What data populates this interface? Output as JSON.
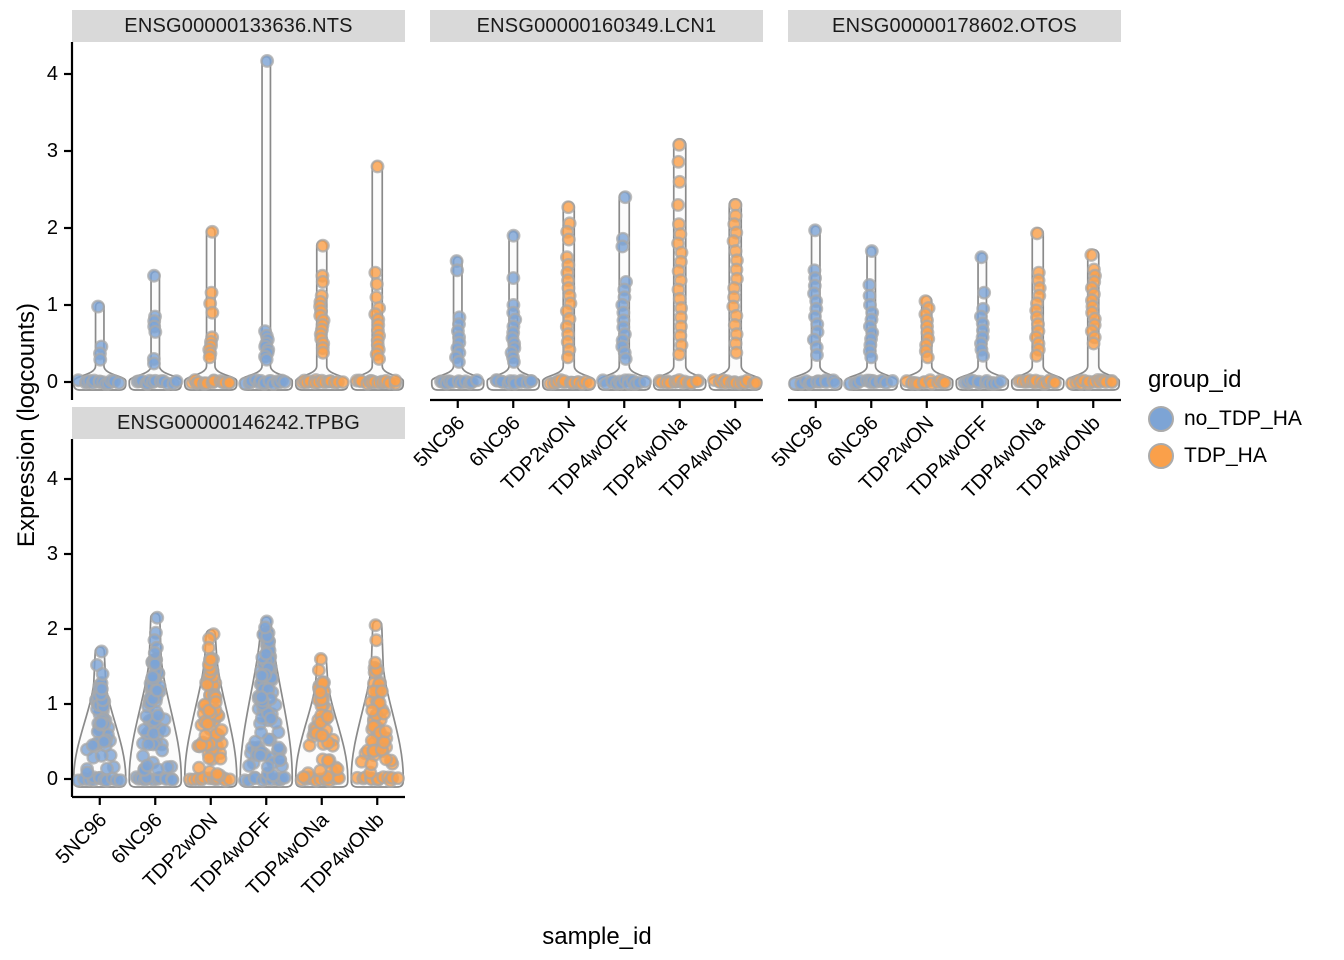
{
  "chart_data": {
    "type": "violin",
    "title": "",
    "xlabel": "sample_id",
    "ylabel": "Expression (logcounts)",
    "y_ticks": [
      0,
      1,
      2,
      3,
      4
    ],
    "ylim": [
      0,
      4.4
    ],
    "grid": "off",
    "background": "#ffffff",
    "strip_background": "#D9D9D9",
    "violin_outline_color": "#8A8A8A",
    "violin_fill_color": "#FAFAFA",
    "point_stroke_color": "#A8A8A8",
    "legend": {
      "title": "group_id",
      "position": "right",
      "entries": [
        {
          "label": "no_TDP_HA",
          "color": "#7DA4D5"
        },
        {
          "label": "TDP_HA",
          "color": "#FAA04A"
        }
      ]
    },
    "categories": [
      {
        "label": "5NC96",
        "group": "no_TDP_HA"
      },
      {
        "label": "6NC96",
        "group": "no_TDP_HA"
      },
      {
        "label": "TDP2wON",
        "group": "TDP_HA"
      },
      {
        "label": "TDP4wOFF",
        "group": "no_TDP_HA"
      },
      {
        "label": "TDP4wONa",
        "group": "TDP_HA"
      },
      {
        "label": "TDP4wONb",
        "group": "TDP_HA"
      }
    ],
    "facets": [
      {
        "label": "ENSG00000133636.NTS",
        "axes": [
          "left"
        ],
        "violins": [
          {
            "shape": "spike",
            "max": 0.98,
            "points": [
              0.98,
              0.46,
              0.37,
              0.29
            ],
            "zeros": 14
          },
          {
            "shape": "spike",
            "max": 1.38,
            "points": [
              1.38,
              0.85,
              0.79,
              0.72,
              0.65,
              0.3,
              0.24
            ],
            "zeros": 14
          },
          {
            "shape": "spike",
            "max": 1.95,
            "points": [
              1.95,
              1.16,
              1.02,
              0.9,
              0.58,
              0.52,
              0.47,
              0.42,
              0.37,
              0.32
            ],
            "zeros": 15
          },
          {
            "shape": "spike",
            "max": 4.17,
            "points": [
              4.17,
              0.66,
              0.6,
              0.55,
              0.5,
              0.46,
              0.42,
              0.38,
              0.33,
              0.29
            ],
            "zeros": 15
          },
          {
            "shape": "spike",
            "max": 1.77,
            "points": [
              1.77,
              1.38,
              1.3,
              1.12,
              1.04,
              0.98,
              0.92,
              0.86,
              0.8,
              0.74,
              0.68,
              0.62,
              0.56,
              0.5,
              0.44,
              0.38
            ],
            "zeros": 15,
            "w": 5
          },
          {
            "shape": "spike",
            "max": 2.8,
            "points": [
              2.8,
              1.42,
              1.27,
              1.1,
              0.96,
              0.88,
              0.81,
              0.74,
              0.67,
              0.6,
              0.54,
              0.48,
              0.42,
              0.36,
              0.3
            ],
            "zeros": 16,
            "w": 5
          }
        ]
      },
      {
        "label": "ENSG00000160349.LCN1",
        "axes": [
          "bottom"
        ],
        "violins": [
          {
            "shape": "spike",
            "max": 1.57,
            "points": [
              1.57,
              1.45,
              0.84,
              0.75,
              0.66,
              0.58,
              0.51,
              0.44,
              0.38,
              0.32,
              0.26
            ],
            "zeros": 13
          },
          {
            "shape": "spike",
            "max": 1.9,
            "points": [
              1.9,
              1.35,
              1.0,
              0.9,
              0.81,
              0.72,
              0.64,
              0.57,
              0.5,
              0.44,
              0.38,
              0.32,
              0.26
            ],
            "zeros": 13
          },
          {
            "shape": "spike",
            "max": 2.27,
            "points": [
              2.27,
              2.06,
              1.95,
              1.85,
              1.62,
              1.52,
              1.42,
              1.32,
              1.22,
              1.12,
              1.02,
              0.92,
              0.82,
              0.72,
              0.62,
              0.52,
              0.42,
              0.32
            ],
            "zeros": 15,
            "w": 5.5
          },
          {
            "shape": "spike",
            "max": 2.4,
            "points": [
              2.4,
              1.86,
              1.76,
              1.3,
              1.2,
              1.1,
              1.0,
              0.9,
              0.8,
              0.71,
              0.62,
              0.54,
              0.46,
              0.38,
              0.3
            ],
            "zeros": 15,
            "w": 5
          },
          {
            "shape": "spike",
            "max": 3.08,
            "points": [
              3.08,
              2.86,
              2.6,
              2.3,
              2.05,
              1.92,
              1.8,
              1.68,
              1.56,
              1.44,
              1.32,
              1.2,
              1.08,
              0.96,
              0.84,
              0.72,
              0.6,
              0.48,
              0.36
            ],
            "zeros": 16,
            "w": 6
          },
          {
            "shape": "spike",
            "max": 2.3,
            "points": [
              2.3,
              2.16,
              2.05,
              1.94,
              1.83,
              1.7,
              1.58,
              1.46,
              1.34,
              1.22,
              1.1,
              0.98,
              0.86,
              0.74,
              0.62,
              0.5,
              0.38
            ],
            "zeros": 16,
            "w": 6
          }
        ]
      },
      {
        "label": "ENSG00000178602.OTOS",
        "axes": [
          "bottom"
        ],
        "violins": [
          {
            "shape": "spike",
            "max": 1.97,
            "points": [
              1.97,
              1.45,
              1.35,
              1.25,
              1.15,
              1.05,
              0.95,
              0.85,
              0.75,
              0.65,
              0.55,
              0.45,
              0.35
            ],
            "zeros": 13
          },
          {
            "shape": "spike",
            "max": 1.7,
            "points": [
              1.7,
              1.26,
              1.12,
              1.0,
              0.9,
              0.81,
              0.72,
              0.64,
              0.56,
              0.48,
              0.4,
              0.32
            ],
            "zeros": 13
          },
          {
            "shape": "spike",
            "max": 1.05,
            "points": [
              1.05,
              0.96,
              0.88,
              0.8,
              0.72,
              0.64,
              0.56,
              0.48,
              0.4,
              0.32
            ],
            "zeros": 13,
            "w": 5
          },
          {
            "shape": "spike",
            "max": 1.62,
            "points": [
              1.62,
              1.16,
              0.95,
              0.85,
              0.76,
              0.67,
              0.58,
              0.5,
              0.42,
              0.34
            ],
            "zeros": 14
          },
          {
            "shape": "spike",
            "max": 1.93,
            "points": [
              1.93,
              1.42,
              1.32,
              1.22,
              1.12,
              1.02,
              0.93,
              0.84,
              0.75,
              0.66,
              0.58,
              0.5,
              0.42,
              0.34
            ],
            "zeros": 15,
            "w": 5.5
          },
          {
            "shape": "spike",
            "max": 1.65,
            "points": [
              1.65,
              1.46,
              1.38,
              1.3,
              1.22,
              1.14,
              1.06,
              0.98,
              0.9,
              0.82,
              0.74,
              0.66,
              0.58,
              0.5
            ],
            "zeros": 15,
            "w": 5.5
          }
        ]
      },
      {
        "label": "ENSG00000146242.TPBG",
        "axes": [
          "left",
          "bottom"
        ],
        "violins": [
          {
            "shape": "cone",
            "max": 1.7,
            "body_top": 1.28,
            "n_body": 55,
            "points": [
              1.7,
              1.52,
              1.4
            ],
            "zeros": 12
          },
          {
            "shape": "cone",
            "max": 2.15,
            "body_top": 1.6,
            "n_body": 65,
            "points": [
              2.15,
              1.95,
              1.85,
              1.75,
              1.68
            ],
            "zeros": 12
          },
          {
            "shape": "cone",
            "max": 1.93,
            "body_top": 1.62,
            "n_body": 70,
            "points": [
              1.93,
              1.87,
              1.75
            ],
            "zeros": 12
          },
          {
            "shape": "cone",
            "max": 2.1,
            "body_top": 1.95,
            "n_body": 85,
            "points": [
              2.1,
              2.02
            ],
            "zeros": 12
          },
          {
            "shape": "cone",
            "max": 1.6,
            "body_top": 1.3,
            "n_body": 50,
            "points": [
              1.6,
              1.45
            ],
            "zeros": 12
          },
          {
            "shape": "cone",
            "max": 2.05,
            "body_top": 1.5,
            "n_body": 55,
            "points": [
              2.05,
              1.85,
              1.55
            ],
            "zeros": 12
          }
        ]
      }
    ]
  }
}
